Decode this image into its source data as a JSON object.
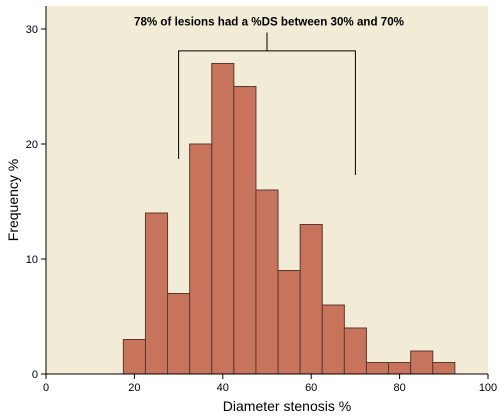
{
  "chart_data": {
    "type": "bar",
    "subtype": "histogram",
    "xlabel": "Diameter stenosis %",
    "ylabel": "Frequency %",
    "xlim": [
      0,
      100
    ],
    "ylim": [
      0,
      32
    ],
    "xticks": [
      0,
      20,
      40,
      60,
      80,
      100
    ],
    "yticks": [
      0,
      10,
      20,
      30
    ],
    "grid": false,
    "bins": [
      {
        "x0": 17.5,
        "x1": 22.5,
        "value": 3
      },
      {
        "x0": 22.5,
        "x1": 27.5,
        "value": 14
      },
      {
        "x0": 27.5,
        "x1": 32.5,
        "value": 7
      },
      {
        "x0": 32.5,
        "x1": 37.5,
        "value": 20
      },
      {
        "x0": 37.5,
        "x1": 42.5,
        "value": 27
      },
      {
        "x0": 42.5,
        "x1": 47.5,
        "value": 25
      },
      {
        "x0": 47.5,
        "x1": 52.5,
        "value": 16
      },
      {
        "x0": 52.5,
        "x1": 57.5,
        "value": 9
      },
      {
        "x0": 57.5,
        "x1": 62.5,
        "value": 13
      },
      {
        "x0": 62.5,
        "x1": 67.5,
        "value": 6
      },
      {
        "x0": 67.5,
        "x1": 72.5,
        "value": 4
      },
      {
        "x0": 72.5,
        "x1": 77.5,
        "value": 1
      },
      {
        "x0": 77.5,
        "x1": 82.5,
        "value": 1
      },
      {
        "x0": 82.5,
        "x1": 87.5,
        "value": 2
      },
      {
        "x0": 87.5,
        "x1": 92.5,
        "value": 1
      }
    ],
    "annotation": {
      "text": "78% of lesions had a %DS between 30% and 70%",
      "bracket_from": 30,
      "bracket_to": 70
    },
    "colors": {
      "plot_background": "#f2ecd7",
      "bar_fill": "#c8735c",
      "bar_stroke": "#5a3a30"
    }
  }
}
